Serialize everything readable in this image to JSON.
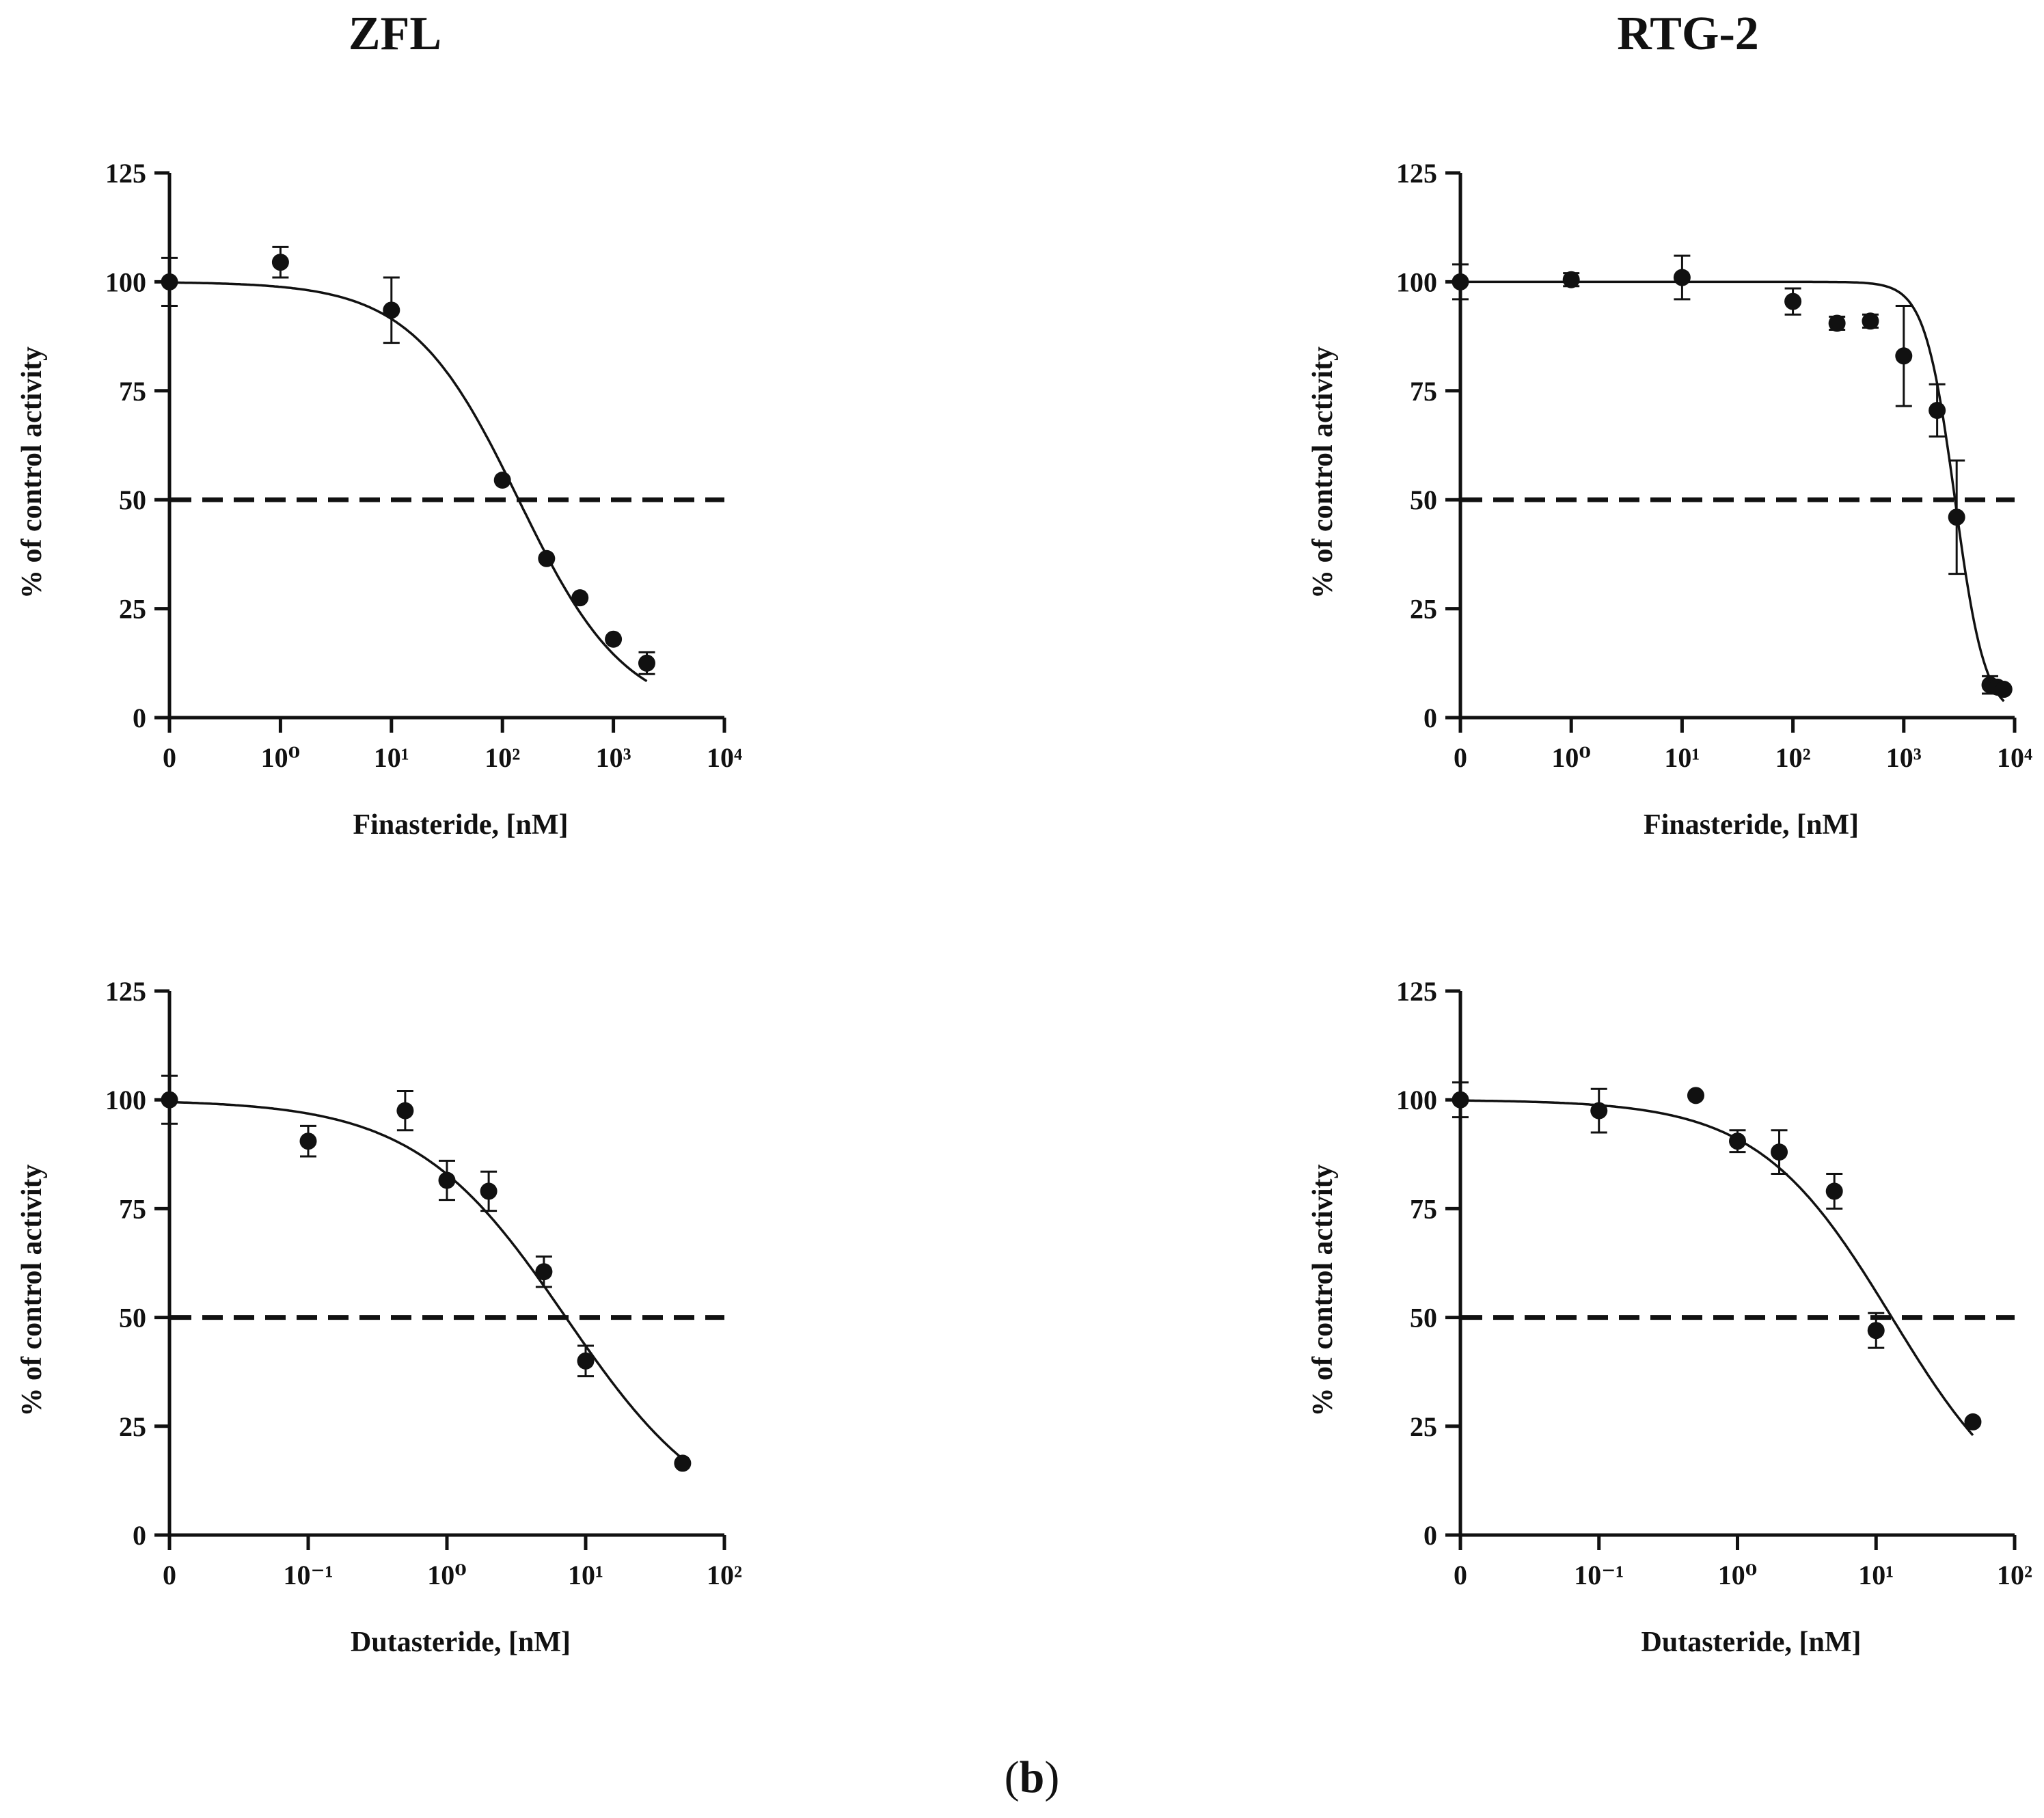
{
  "figure": {
    "column_titles": [
      "ZFL",
      "RTG-2"
    ],
    "panel_label": {
      "open": "(",
      "letter": "b",
      "close": ")"
    }
  },
  "chart_data": [
    {
      "type": "scatter",
      "id": "zfl-finasteride",
      "cell_line": "ZFL",
      "xlabel": "Finasteride, [nM]",
      "ylabel": "% of control activity",
      "x_scale": "log",
      "x_zero_label": "0",
      "x_decades": [
        0,
        1,
        2,
        3,
        4
      ],
      "xlim_exp": [
        0,
        4
      ],
      "ylim": [
        0,
        125
      ],
      "y_ticks": [
        0,
        25,
        50,
        75,
        100,
        125
      ],
      "reference_line": 50,
      "fit": {
        "model": "four-parameter logistic",
        "top": 100,
        "bottom": 0,
        "ic50": 140,
        "hill": 0.9
      },
      "fit_range": [
        0,
        2000
      ],
      "points": [
        {
          "x": 0,
          "y": 100,
          "err": 5.5
        },
        {
          "x": 1,
          "y": 104.5,
          "err": 3.5
        },
        {
          "x": 10,
          "y": 93.5,
          "err": 7.5
        },
        {
          "x": 100,
          "y": 54.5,
          "err": 0
        },
        {
          "x": 250,
          "y": 36.5,
          "err": 0
        },
        {
          "x": 500,
          "y": 27.5,
          "err": 0
        },
        {
          "x": 1000,
          "y": 18,
          "err": 0
        },
        {
          "x": 2000,
          "y": 12.5,
          "err": 2.5
        }
      ]
    },
    {
      "type": "scatter",
      "id": "rtg2-finasteride",
      "cell_line": "RTG-2",
      "xlabel": "Finasteride, [nM]",
      "ylabel": "% of control activity",
      "x_scale": "log",
      "x_zero_label": "0",
      "x_decades": [
        0,
        1,
        2,
        3,
        4
      ],
      "xlim_exp": [
        0,
        4
      ],
      "ylim": [
        0,
        125
      ],
      "y_ticks": [
        0,
        25,
        50,
        75,
        100,
        125
      ],
      "reference_line": 50,
      "fit": {
        "model": "four-parameter logistic",
        "top": 100,
        "bottom": 0,
        "ic50": 2900,
        "hill": 3.2
      },
      "fit_range": [
        0,
        8000
      ],
      "points": [
        {
          "x": 0,
          "y": 100,
          "err": 4
        },
        {
          "x": 1,
          "y": 100.5,
          "err": 1.5
        },
        {
          "x": 10,
          "y": 101,
          "err": 5
        },
        {
          "x": 100,
          "y": 95.5,
          "err": 3
        },
        {
          "x": 250,
          "y": 90.5,
          "err": 1.5
        },
        {
          "x": 500,
          "y": 91,
          "err": 1.5
        },
        {
          "x": 1000,
          "y": 83,
          "err": 11.5
        },
        {
          "x": 2000,
          "y": 70.5,
          "err": 6
        },
        {
          "x": 3000,
          "y": 46,
          "err": 13
        },
        {
          "x": 6000,
          "y": 7.5,
          "err": 2
        },
        {
          "x": 7000,
          "y": 7,
          "err": 1
        },
        {
          "x": 8000,
          "y": 6.5,
          "err": 0
        }
      ]
    },
    {
      "type": "scatter",
      "id": "zfl-dutasteride",
      "cell_line": "ZFL",
      "xlabel": "Dutasteride, [nM]",
      "ylabel": "% of control activity",
      "x_scale": "log",
      "x_zero_label": "0",
      "x_decades": [
        -1,
        0,
        1,
        2
      ],
      "xlim_exp": [
        -1,
        2
      ],
      "ylim": [
        0,
        125
      ],
      "y_ticks": [
        0,
        25,
        50,
        75,
        100,
        125
      ],
      "reference_line": 50,
      "fit": {
        "model": "four-parameter logistic",
        "top": 100,
        "bottom": 0,
        "ic50": 7.2,
        "hill": 0.8
      },
      "fit_range": [
        0,
        50
      ],
      "points": [
        {
          "x": 0,
          "y": 100,
          "err": 5.5
        },
        {
          "x": 0.1,
          "y": 90.5,
          "err": 3.5
        },
        {
          "x": 0.5,
          "y": 97.5,
          "err": 4.5
        },
        {
          "x": 1,
          "y": 81.5,
          "err": 4.5
        },
        {
          "x": 2,
          "y": 79,
          "err": 4.5
        },
        {
          "x": 5,
          "y": 60.5,
          "err": 3.5
        },
        {
          "x": 10,
          "y": 40,
          "err": 3.5
        },
        {
          "x": 50,
          "y": 16.5,
          "err": 0
        }
      ]
    },
    {
      "type": "scatter",
      "id": "rtg2-dutasteride",
      "cell_line": "RTG-2",
      "xlabel": "Dutasteride, [nM]",
      "ylabel": "% of control activity",
      "x_scale": "log",
      "x_zero_label": "0",
      "x_decades": [
        -1,
        0,
        1,
        2
      ],
      "xlim_exp": [
        -1,
        2
      ],
      "ylim": [
        0,
        125
      ],
      "y_ticks": [
        0,
        25,
        50,
        75,
        100,
        125
      ],
      "reference_line": 50,
      "fit": {
        "model": "four-parameter logistic",
        "top": 100,
        "bottom": 0,
        "ic50": 13,
        "hill": 0.9
      },
      "fit_range": [
        0,
        50
      ],
      "points": [
        {
          "x": 0,
          "y": 100,
          "err": 4
        },
        {
          "x": 0.1,
          "y": 97.5,
          "err": 5
        },
        {
          "x": 0.5,
          "y": 101,
          "err": 0
        },
        {
          "x": 1,
          "y": 90.5,
          "err": 2.5
        },
        {
          "x": 2,
          "y": 88,
          "err": 5
        },
        {
          "x": 5,
          "y": 79,
          "err": 4
        },
        {
          "x": 10,
          "y": 47,
          "err": 4
        },
        {
          "x": 50,
          "y": 26,
          "err": 0
        }
      ]
    }
  ]
}
